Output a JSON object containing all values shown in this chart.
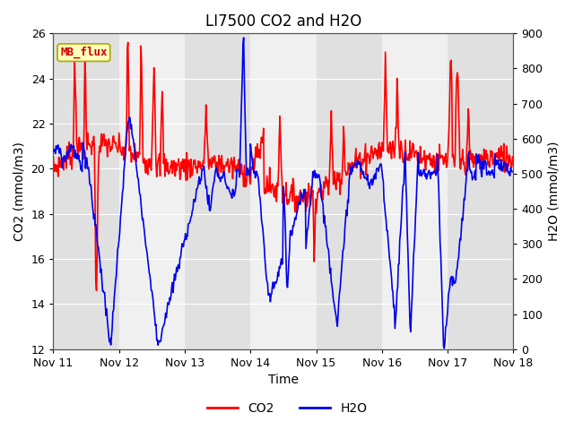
{
  "title": "LI7500 CO2 and H2O",
  "xlabel": "Time",
  "ylabel_left": "CO2 (mmol/m3)",
  "ylabel_right": "H2O (mmol/m3)",
  "ylim_left": [
    12,
    26
  ],
  "ylim_right": [
    0,
    900
  ],
  "yticks_left": [
    12,
    14,
    16,
    18,
    20,
    22,
    24,
    26
  ],
  "yticks_right": [
    0,
    100,
    200,
    300,
    400,
    500,
    600,
    700,
    800,
    900
  ],
  "annotation_text": "MB_flux",
  "legend_labels": [
    "CO2",
    "H2O"
  ],
  "co2_color": "#FF0000",
  "h2o_color": "#0000EE",
  "background_color": "#ffffff",
  "plot_bg_light": "#f0f0f0",
  "plot_bg_dark": "#e0e0e0",
  "grid_color": "#ffffff",
  "title_fontsize": 12,
  "axis_label_fontsize": 10,
  "tick_fontsize": 9,
  "legend_fontsize": 10,
  "linewidth": 1.2
}
